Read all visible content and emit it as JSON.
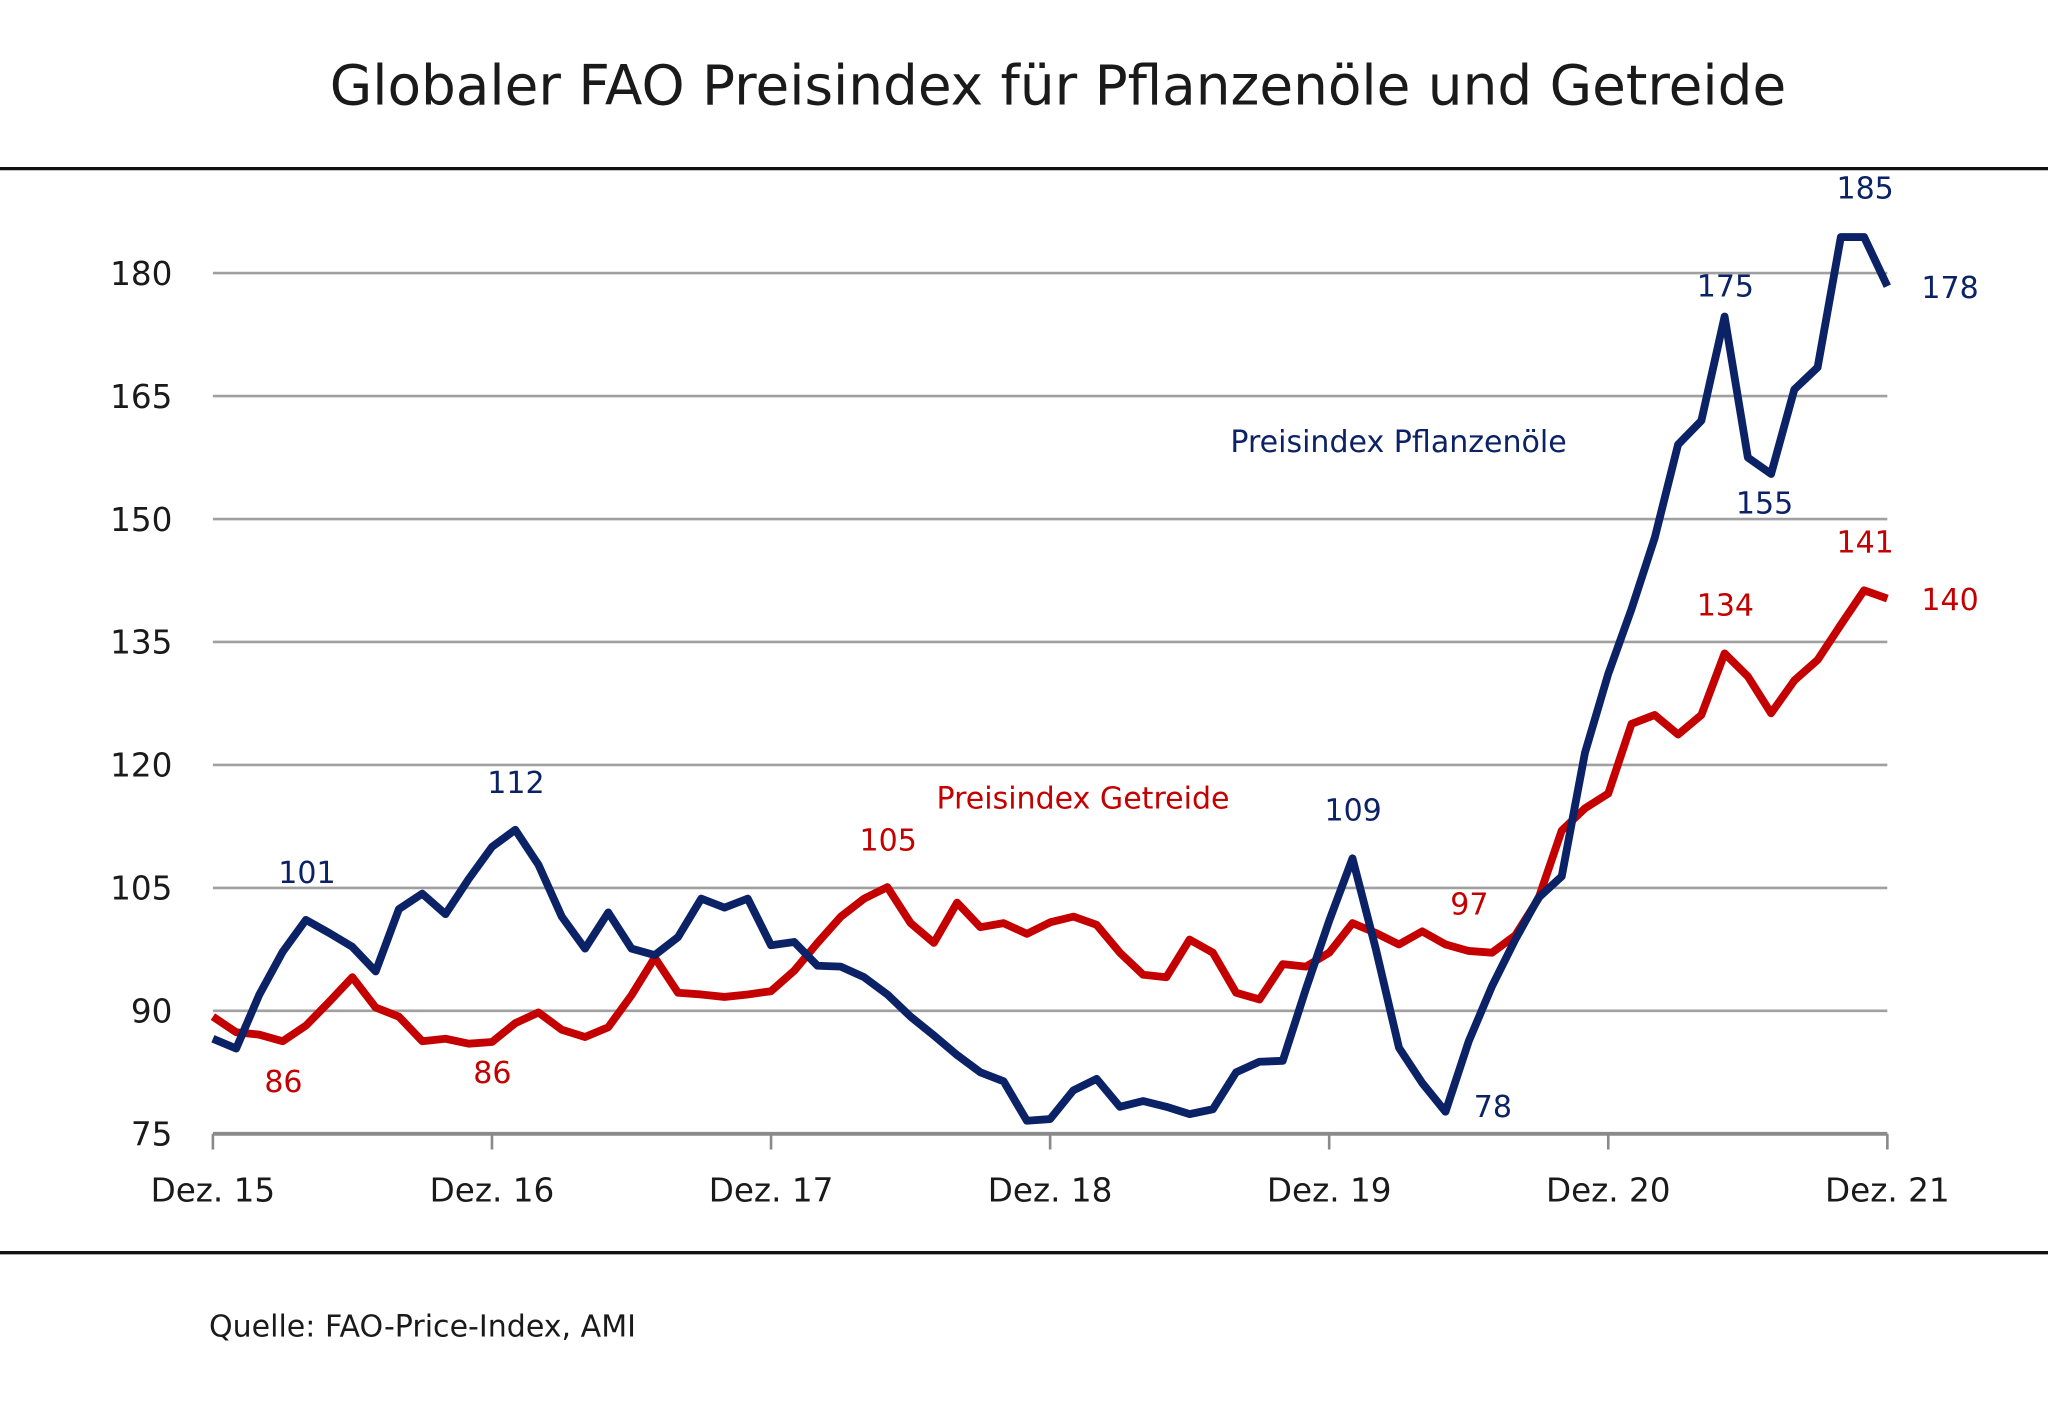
{
  "chart_data": {
    "type": "line",
    "title": "Globaler FAO Preisindex für Pflanzenöle und Getreide",
    "source": "Quelle: FAO-Price-Index, AMI",
    "x_ticks": [
      "Dez. 15",
      "Dez. 16",
      "Dez. 17",
      "Dez. 18",
      "Dez. 19",
      "Dez. 20",
      "Dez. 21"
    ],
    "x_range": [
      "Dez. 15",
      "Dez. 21"
    ],
    "x_frequency": "monthly",
    "y_ticks": [
      75,
      90,
      105,
      120,
      135,
      150,
      165,
      180
    ],
    "ylim": [
      75,
      180
    ],
    "grid": "horizontal",
    "colors": {
      "Preisindex Pflanzenöle": "#0b2266",
      "Preisindex Getreide": "#c40000",
      "grid": "#a0a0a0"
    },
    "series": [
      {
        "name": "Preisindex Pflanzenöle",
        "values": [
          86.6,
          85.4,
          92,
          97.2,
          101.1,
          99.5,
          97.8,
          94.8,
          102.4,
          104.3,
          101.8,
          106.1,
          110,
          112.1,
          107.8,
          101.5,
          97.6,
          102,
          97.6,
          96.8,
          99,
          103.7,
          102.6,
          103.7,
          98,
          98.4,
          95.5,
          95.4,
          94.1,
          92,
          89.3,
          87,
          84.6,
          82.5,
          81.4,
          76.6,
          76.8,
          80.3,
          81.7,
          78.3,
          79,
          78.3,
          77.4,
          78,
          82.5,
          83.8,
          83.9,
          92.7,
          101,
          108.6,
          97.6,
          85.5,
          81.2,
          77.7,
          86.3,
          93,
          98.7,
          103.8,
          106.4,
          121.5,
          131.1,
          139,
          147.7,
          159.1,
          162,
          174.7,
          157.5,
          155.5,
          165.8,
          168.5,
          184.4,
          184.4,
          178.4
        ]
      },
      {
        "name": "Preisindex Getreide",
        "values": [
          89.3,
          87.4,
          87.1,
          86.3,
          88.2,
          91.1,
          94.1,
          90.4,
          89.3,
          86.3,
          86.6,
          86,
          86.2,
          88.5,
          89.8,
          87.7,
          86.8,
          88,
          91.9,
          96.5,
          92.2,
          92,
          91.7,
          92,
          92.4,
          94.9,
          98.3,
          101.5,
          103.7,
          105.1,
          100.7,
          98.3,
          103.2,
          100.2,
          100.7,
          99.4,
          100.8,
          101.5,
          100.5,
          97.1,
          94.4,
          94.1,
          98.7,
          97.1,
          92.2,
          91.4,
          95.7,
          95.4,
          97.1,
          100.7,
          99.5,
          98.1,
          99.7,
          98.1,
          97.3,
          97.1,
          99.2,
          103.7,
          112,
          114.7,
          116.5,
          125,
          126.1,
          123.7,
          126.1,
          133.6,
          130.8,
          126.3,
          130.3,
          132.8,
          137.1,
          141.3,
          140.3
        ]
      }
    ],
    "annotations": {
      "blue": [
        "101",
        "112",
        "109",
        "78",
        "175",
        "155",
        "185",
        "178"
      ],
      "red": [
        "86",
        "86",
        "105",
        "97",
        "134",
        "141",
        "140"
      ]
    }
  }
}
